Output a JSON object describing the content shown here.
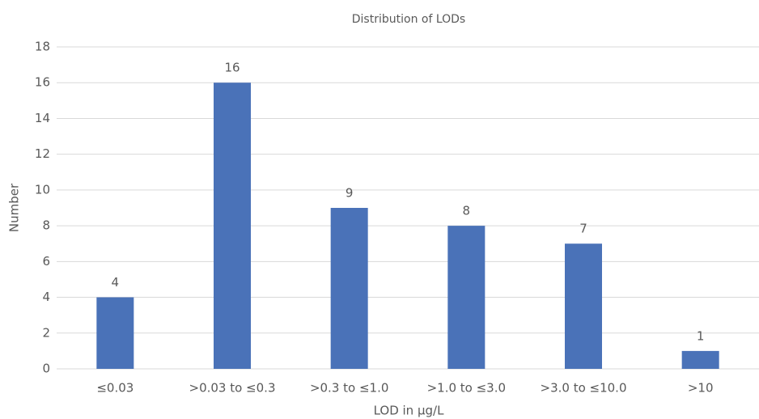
{
  "chart_data": {
    "type": "bar",
    "title": "Distribution of LODs",
    "x_label": "LOD in µg/L",
    "y_label": "Number",
    "categories": [
      "≤0.03",
      ">0.03 to ≤0.3",
      ">0.3 to ≤1.0",
      ">1.0 to ≤3.0",
      ">3.0 to ≤10.0",
      ">10"
    ],
    "values": [
      4,
      16,
      9,
      8,
      7,
      1
    ],
    "color": "#4a72b8",
    "ylim": [
      0,
      18
    ],
    "yticks": [
      0,
      2,
      4,
      6,
      8,
      10,
      12,
      14,
      16,
      18
    ],
    "grid": true
  }
}
